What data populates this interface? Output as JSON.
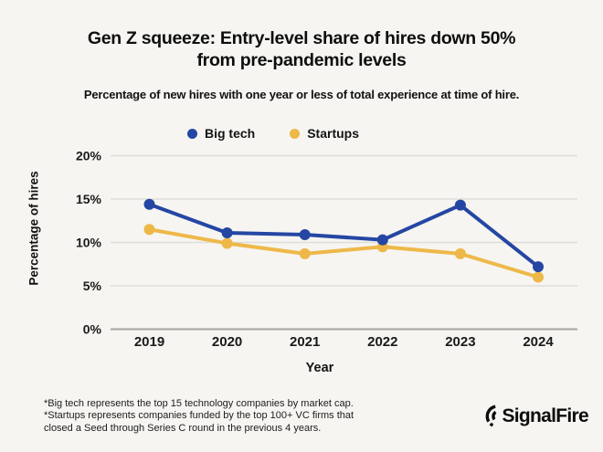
{
  "header": {
    "title_line1": "Gen Z squeeze: Entry-level share of hires down 50%",
    "title_line2": "from pre-pandemic levels",
    "subtitle": "Percentage of new hires with one year or less of total experience at time of hire."
  },
  "legend": {
    "items": [
      {
        "label": "Big tech",
        "color": "#2546a3"
      },
      {
        "label": "Startups",
        "color": "#eeb849"
      }
    ]
  },
  "chart_data": {
    "type": "line",
    "x": [
      "2019",
      "2020",
      "2021",
      "2022",
      "2023",
      "2024"
    ],
    "series": [
      {
        "name": "Big tech",
        "color": "#2546a3",
        "values": [
          14.4,
          11.1,
          10.9,
          10.3,
          14.3,
          7.2
        ]
      },
      {
        "name": "Startups",
        "color": "#eeb849",
        "values": [
          11.5,
          9.9,
          8.7,
          9.5,
          8.7,
          6.0
        ]
      }
    ],
    "title": "Gen Z squeeze: Entry-level share of hires down 50% from pre-pandemic levels",
    "subtitle": "Percentage of new hires with one year or less of total experience at time of hire.",
    "xlabel": "Year",
    "ylabel": "Percentage of hires",
    "ylim": [
      0,
      20
    ],
    "ytick_values": [
      0,
      5,
      10,
      15,
      20
    ],
    "ytick_labels": [
      "0%",
      "5%",
      "10%",
      "15%",
      "20%"
    ],
    "grid": true,
    "grid_color": "#dfdeda",
    "axis_color": "#a5a4a0",
    "legend_position": "top",
    "background": "#f6f5f1"
  },
  "axes": {
    "xlabel": "Year",
    "ylabel": "Percentage of hires"
  },
  "footnote": {
    "line1": "*Big tech represents the top 15 technology companies by market cap.",
    "line2": "*Startups represents companies funded by the top 100+ VC firms that",
    "line3": "closed a Seed through Series C round in the previous 4 years."
  },
  "branding": {
    "logo_text": "SignalFire",
    "logo_icon": "signal-arcs-icon"
  }
}
